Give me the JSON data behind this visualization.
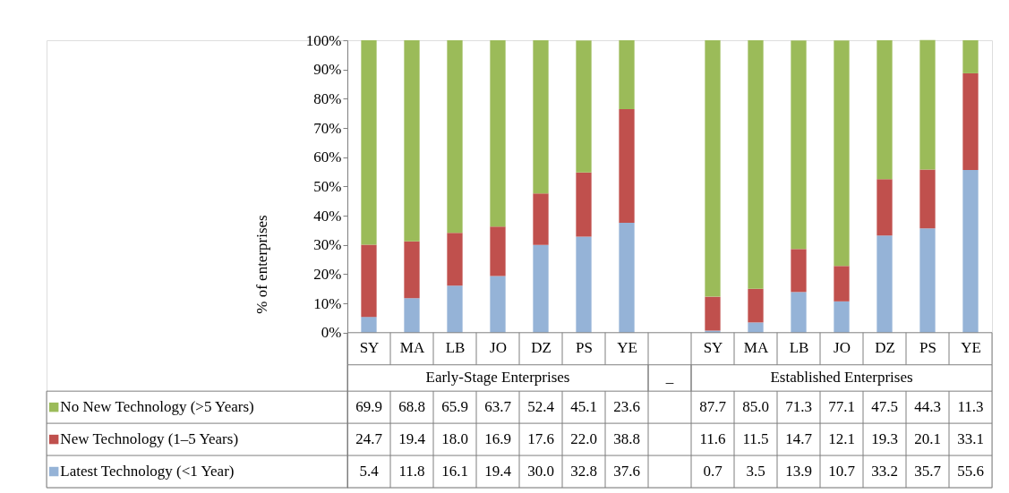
{
  "chart_data": {
    "type": "bar",
    "stacked": true,
    "legend": "bottom left",
    "grid": false,
    "ylabel": "% of enterprises",
    "categories": [
      "SY",
      "MA",
      "LB",
      "JO",
      "DZ",
      "PS",
      "YE",
      null,
      "SY",
      "MA",
      "LB",
      "JO",
      "DZ",
      "PS",
      "YE"
    ],
    "annotations": [
      "Early-Stage Enterprises",
      "_",
      "Established Enterprises"
    ],
    "ylim": [
      0,
      100
    ],
    "yticks": [
      {
        "value": 0,
        "label": "0%"
      },
      {
        "value": 10,
        "label": "10%"
      },
      {
        "value": 20,
        "label": "20%"
      },
      {
        "value": 30,
        "label": "30%"
      },
      {
        "value": 40,
        "label": "40%"
      },
      {
        "value": 50,
        "label": "50%"
      },
      {
        "value": 60,
        "label": "60%"
      },
      {
        "value": 70,
        "label": "70%"
      },
      {
        "value": 80,
        "label": "80%"
      },
      {
        "value": 90,
        "label": "90%"
      },
      {
        "value": 100,
        "label": "100%"
      }
    ],
    "series": [
      {
        "name": "Latest Technology (<1 Year)",
        "color": "#95b3d7",
        "values": [
          5.4,
          11.8,
          16.1,
          19.4,
          30.0,
          32.8,
          37.6,
          null,
          0.7,
          3.5,
          13.9,
          10.7,
          33.2,
          35.7,
          55.6
        ],
        "value_labels": [
          "5.4",
          "11.8",
          "16.1",
          "19.4",
          "30.0",
          "32.8",
          "37.6",
          null,
          "0.7",
          "3.5",
          "13.9",
          "10.7",
          "33.2",
          "35.7",
          "55.6"
        ]
      },
      {
        "name": "New Technology (1–5 Years)",
        "color": "#c0504d",
        "values": [
          24.7,
          19.4,
          18.0,
          16.9,
          17.6,
          22.0,
          38.8,
          null,
          11.6,
          11.5,
          14.7,
          12.1,
          19.3,
          20.1,
          33.1
        ],
        "value_labels": [
          "24.7",
          "19.4",
          "18.0",
          "16.9",
          "17.6",
          "22.0",
          "38.8",
          null,
          "11.6",
          "11.5",
          "14.7",
          "12.1",
          "19.3",
          "20.1",
          "33.1"
        ]
      },
      {
        "name": "No New Technology (>5 Years)",
        "color": "#9bbb59",
        "values": [
          69.9,
          68.8,
          65.9,
          63.7,
          52.4,
          45.1,
          23.6,
          null,
          87.7,
          85.0,
          71.3,
          77.1,
          47.5,
          44.3,
          11.3
        ],
        "value_labels": [
          "69.9",
          "68.8",
          "65.9",
          "63.7",
          "52.4",
          "45.1",
          "23.6",
          null,
          "87.7",
          "85.0",
          "71.3",
          "77.1",
          "47.5",
          "44.3",
          "11.3"
        ]
      }
    ]
  }
}
